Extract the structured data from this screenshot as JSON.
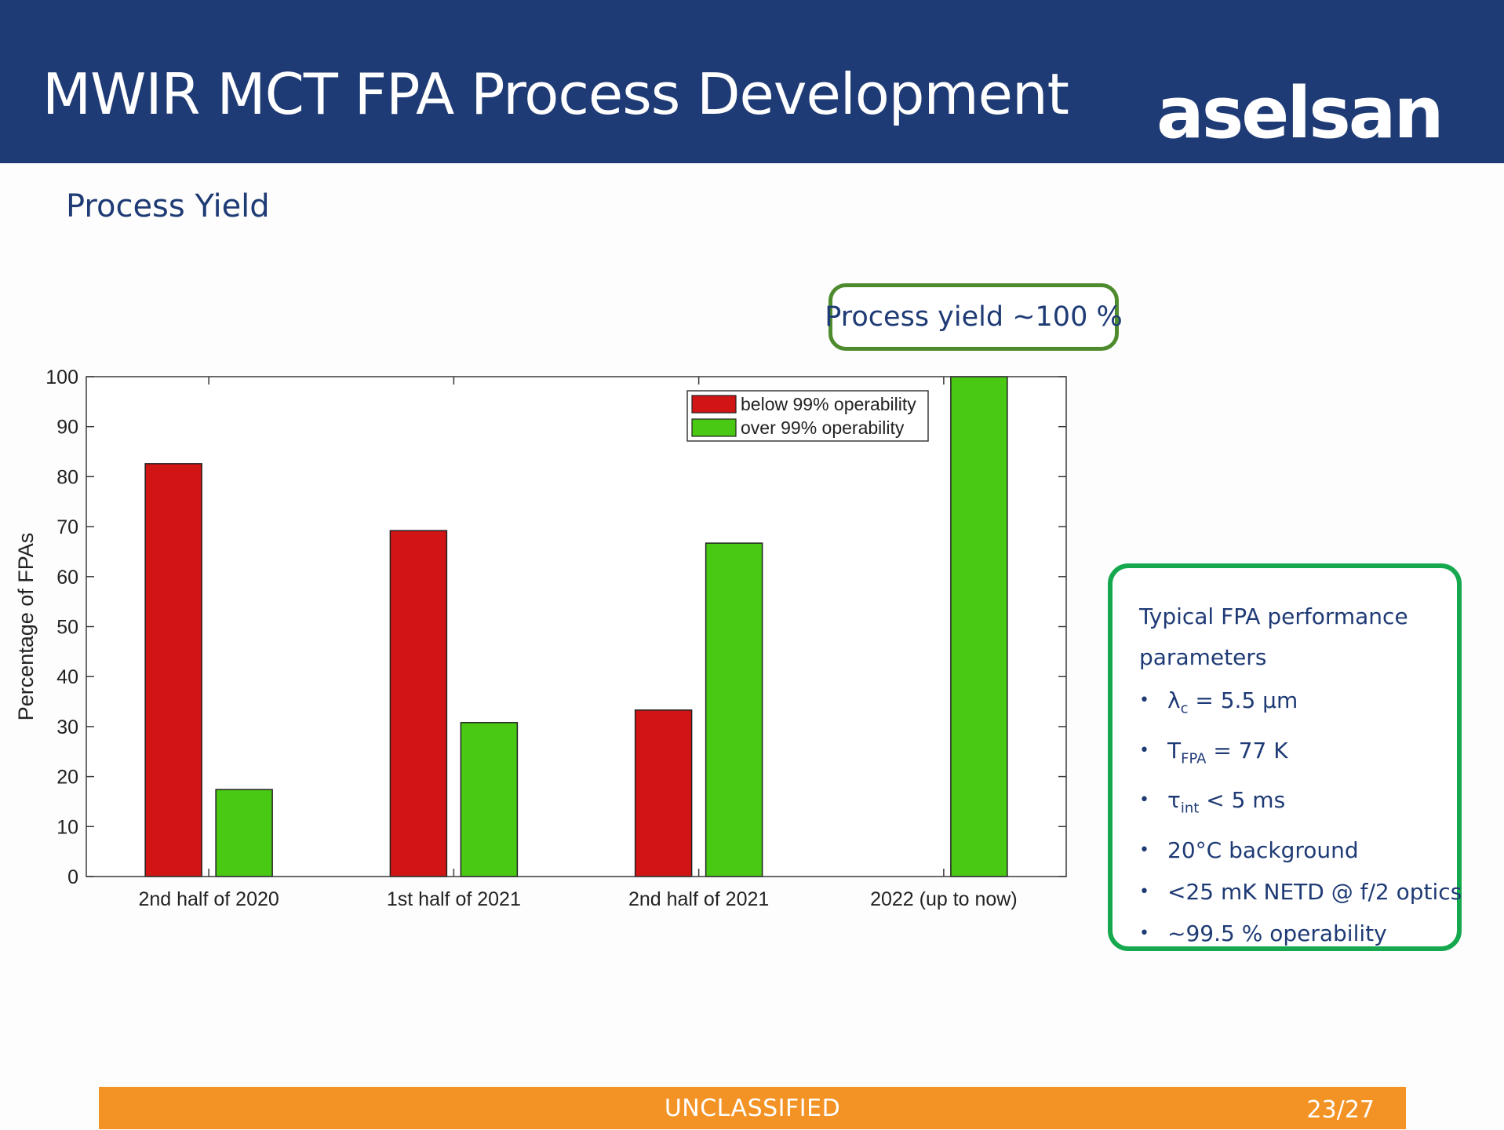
{
  "slide": {
    "title": "MWIR MCT FPA Process Development",
    "logo_text": "aselsan",
    "section_title": "Process Yield",
    "callout": "Process yield ~100 %",
    "footer": {
      "classification": "UNCLASSIFIED",
      "page": "23/27"
    }
  },
  "perf": {
    "title": "Typical FPA performance parameters",
    "items": [
      {
        "main": "λ",
        "sub": "c",
        "rest": " = 5.5 µm"
      },
      {
        "main": "T",
        "sub": "FPA",
        "rest": " = 77 K"
      },
      {
        "main": "τ",
        "sub": "int",
        "rest": " < 5 ms"
      },
      {
        "main": "20°C background",
        "sub": "",
        "rest": ""
      },
      {
        "main": "<25 mK NETD @ f/2 optics",
        "sub": "",
        "rest": ""
      },
      {
        "main": "~99.5 % operability",
        "sub": "",
        "rest": ""
      }
    ]
  },
  "colors": {
    "below": "#d11414",
    "over": "#49c914",
    "header": "#1f3b75",
    "footer": "#f39325"
  },
  "chart_data": {
    "type": "bar",
    "categories": [
      "2nd half of 2020",
      "1st half of 2021",
      "2nd half of 2021",
      "2022 (up to now)"
    ],
    "series": [
      {
        "name": "below 99% operability",
        "values": [
          82.6,
          69.2,
          33.3,
          0
        ]
      },
      {
        "name": "over 99% operability",
        "values": [
          17.4,
          30.8,
          66.7,
          100
        ]
      }
    ],
    "ylabel": "Percentage of FPAs",
    "xlabel": "",
    "ylim": [
      0,
      100
    ],
    "yticks": [
      0,
      10,
      20,
      30,
      40,
      50,
      60,
      70,
      80,
      90,
      100
    ],
    "legend_position": "top-right",
    "grid": false
  }
}
